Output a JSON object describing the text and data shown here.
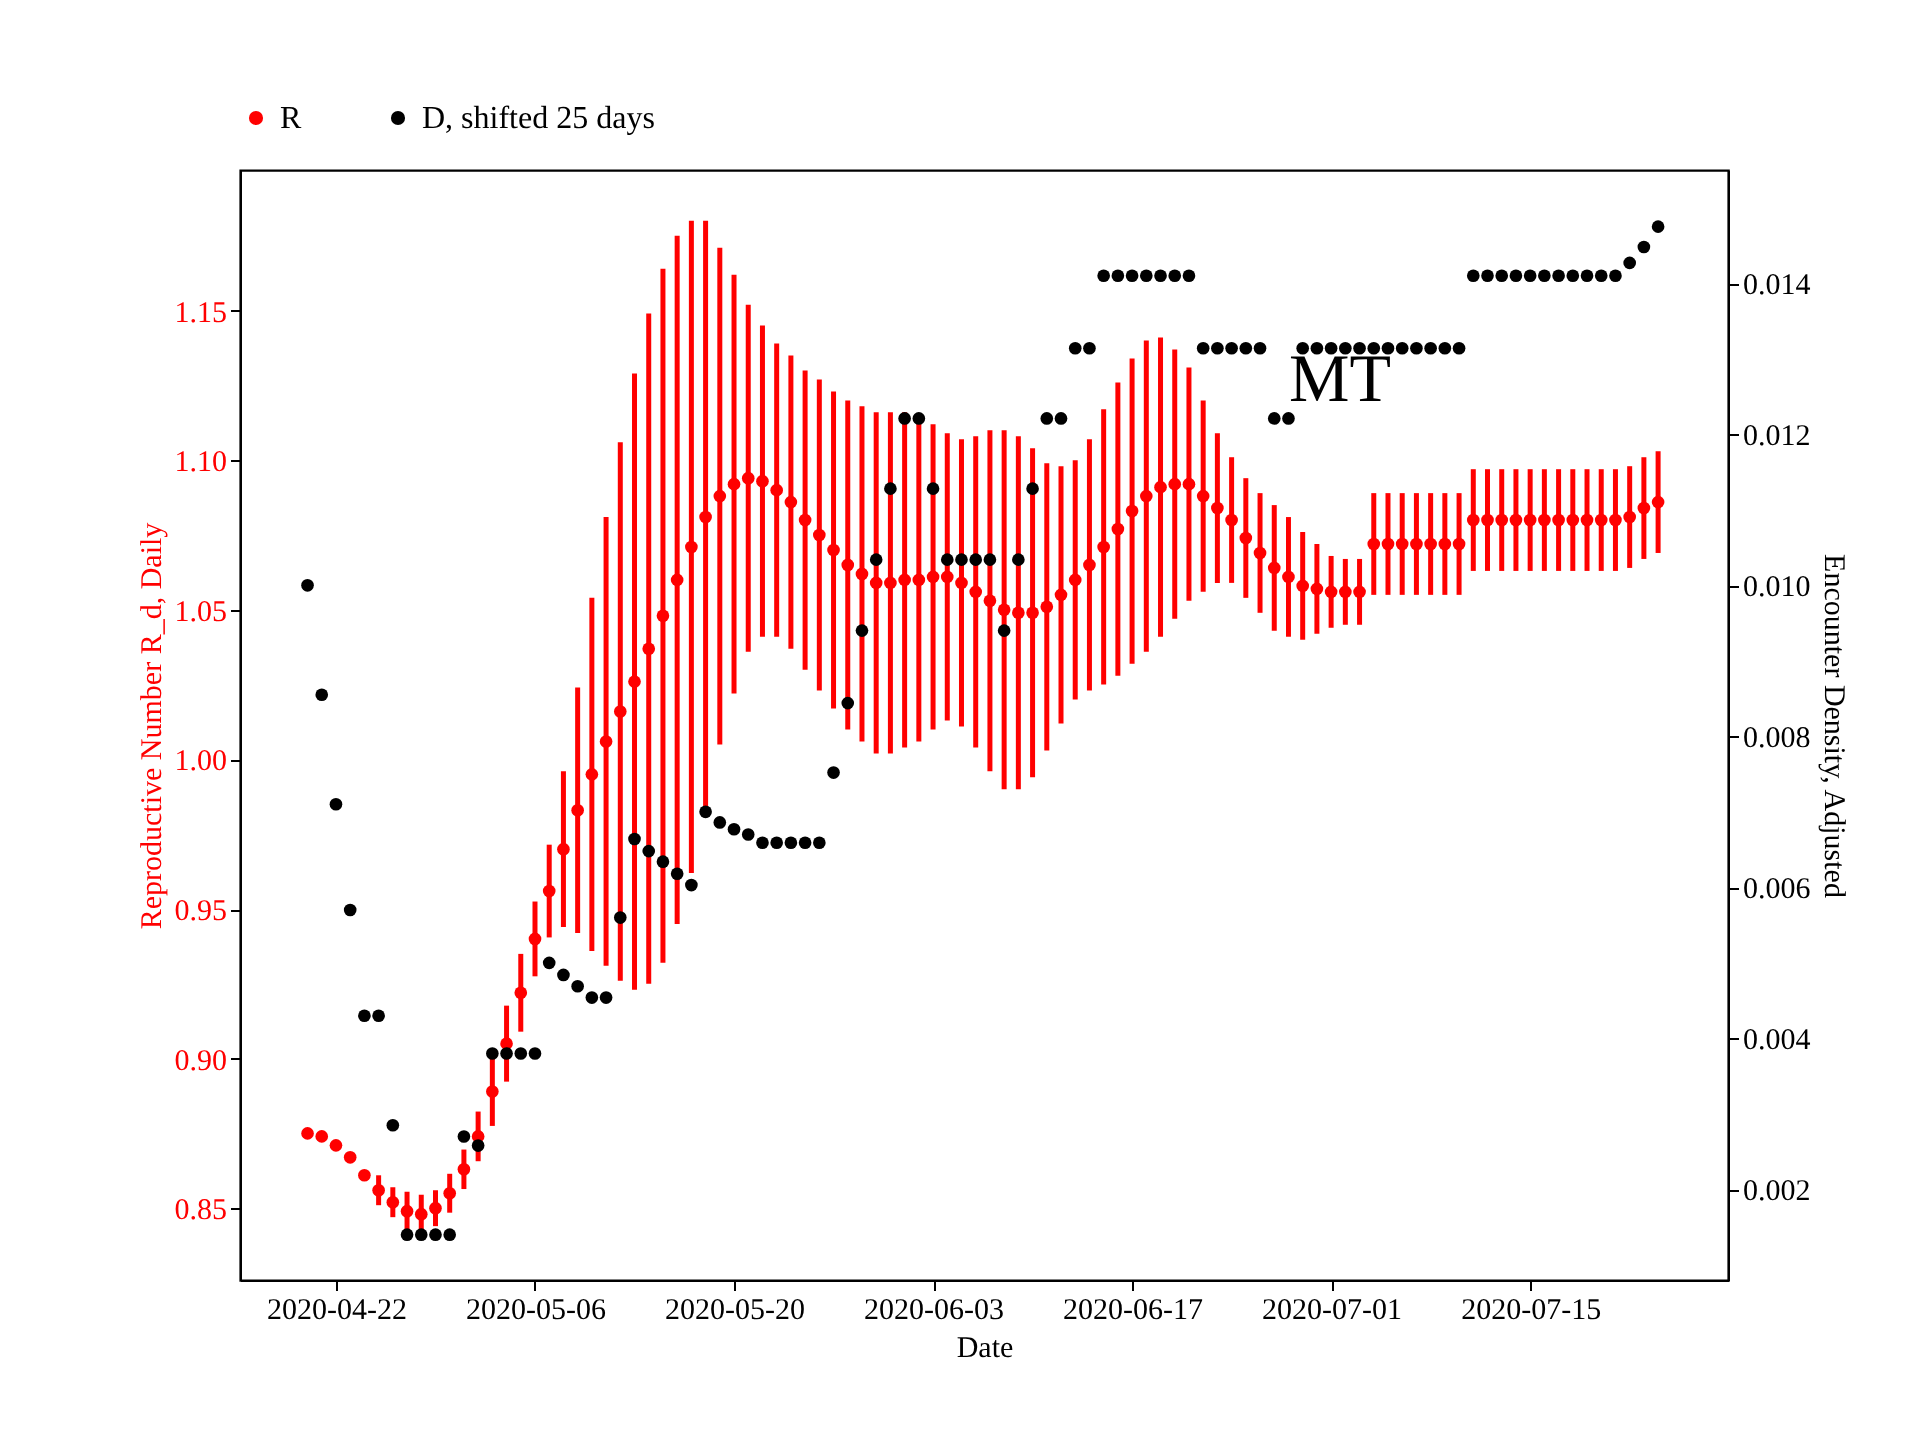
{
  "chart_data": {
    "type": "scatter",
    "xlabel": "Date",
    "ylabel": "Reproductive Number R_d, Daily",
    "y2label": "Encounter Density, Adjusted",
    "annotations": [
      "MT"
    ],
    "x": [
      "2020-04-20",
      "2020-04-21",
      "2020-04-22",
      "2020-04-23",
      "2020-04-24",
      "2020-04-25",
      "2020-04-26",
      "2020-04-27",
      "2020-04-28",
      "2020-04-29",
      "2020-04-30",
      "2020-05-01",
      "2020-05-02",
      "2020-05-03",
      "2020-05-04",
      "2020-05-05",
      "2020-05-06",
      "2020-05-07",
      "2020-05-08",
      "2020-05-09",
      "2020-05-10",
      "2020-05-11",
      "2020-05-12",
      "2020-05-13",
      "2020-05-14",
      "2020-05-15",
      "2020-05-16",
      "2020-05-17",
      "2020-05-18",
      "2020-05-19",
      "2020-05-20",
      "2020-05-21",
      "2020-05-22",
      "2020-05-23",
      "2020-05-24",
      "2020-05-25",
      "2020-05-26",
      "2020-05-27",
      "2020-05-28",
      "2020-05-29",
      "2020-05-30",
      "2020-05-31",
      "2020-06-01",
      "2020-06-02",
      "2020-06-03",
      "2020-06-04",
      "2020-06-05",
      "2020-06-06",
      "2020-06-07",
      "2020-06-08",
      "2020-06-09",
      "2020-06-10",
      "2020-06-11",
      "2020-06-12",
      "2020-06-13",
      "2020-06-14",
      "2020-06-15",
      "2020-06-16",
      "2020-06-17",
      "2020-06-18",
      "2020-06-19",
      "2020-06-20",
      "2020-06-21",
      "2020-06-22",
      "2020-06-23",
      "2020-06-24",
      "2020-06-25",
      "2020-06-26",
      "2020-06-27",
      "2020-06-28",
      "2020-06-29",
      "2020-06-30",
      "2020-07-01",
      "2020-07-02",
      "2020-07-03",
      "2020-07-04",
      "2020-07-05",
      "2020-07-06",
      "2020-07-07",
      "2020-07-08",
      "2020-07-09",
      "2020-07-10",
      "2020-07-11",
      "2020-07-12",
      "2020-07-13",
      "2020-07-14",
      "2020-07-15",
      "2020-07-16",
      "2020-07-17",
      "2020-07-18",
      "2020-07-19",
      "2020-07-20",
      "2020-07-21",
      "2020-07-22",
      "2020-07-23",
      "2020-07-24"
    ],
    "series": [
      {
        "name": "R",
        "color": "#ff0000",
        "values": [
          0.875,
          0.874,
          0.871,
          0.867,
          0.861,
          0.856,
          0.852,
          0.849,
          0.848,
          0.85,
          0.855,
          0.863,
          0.874,
          0.889,
          0.905,
          0.922,
          0.94,
          0.956,
          0.97,
          0.983,
          0.995,
          1.006,
          1.016,
          1.026,
          1.037,
          1.048,
          1.06,
          1.071,
          1.081,
          1.088,
          1.092,
          1.094,
          1.093,
          1.09,
          1.086,
          1.08,
          1.075,
          1.07,
          1.065,
          1.062,
          1.059,
          1.059,
          1.06,
          1.06,
          1.061,
          1.061,
          1.059,
          1.056,
          1.053,
          1.05,
          1.049,
          1.049,
          1.051,
          1.055,
          1.06,
          1.065,
          1.071,
          1.077,
          1.083,
          1.088,
          1.091,
          1.092,
          1.092,
          1.088,
          1.084,
          1.08,
          1.074,
          1.069,
          1.064,
          1.061,
          1.058,
          1.057,
          1.056,
          1.056,
          1.056,
          1.072,
          1.072,
          1.072,
          1.072,
          1.072,
          1.072,
          1.072,
          1.08,
          1.08,
          1.08,
          1.08,
          1.08,
          1.08,
          1.08,
          1.08,
          1.08,
          1.08,
          1.08,
          1.081,
          1.084,
          1.086
        ],
        "errors": [
          null,
          null,
          null,
          null,
          null,
          0.005,
          0.005,
          0.0065,
          0.0065,
          0.006,
          0.0065,
          0.0066,
          0.0083,
          0.0115,
          0.0127,
          0.013,
          0.0125,
          0.0155,
          0.026,
          0.041,
          0.059,
          0.075,
          0.09,
          0.103,
          0.112,
          0.116,
          0.115,
          0.109,
          0.099,
          0.083,
          0.07,
          0.058,
          0.052,
          0.049,
          0.049,
          0.05,
          0.052,
          0.053,
          0.055,
          0.056,
          0.057,
          0.057,
          0.056,
          0.054,
          0.051,
          0.048,
          0.048,
          0.052,
          0.057,
          0.06,
          0.059,
          0.055,
          0.048,
          0.043,
          0.04,
          0.042,
          0.046,
          0.049,
          0.051,
          0.052,
          0.05,
          0.045,
          0.039,
          0.032,
          0.025,
          0.021,
          0.02,
          0.02,
          0.021,
          0.02,
          0.018,
          0.015,
          0.012,
          0.011,
          0.011,
          0.017,
          0.017,
          0.017,
          0.017,
          0.017,
          0.017,
          0.017,
          0.017,
          0.017,
          0.017,
          0.017,
          0.017,
          0.017,
          0.017,
          0.017,
          0.017,
          0.017,
          0.017,
          0.017,
          0.017,
          0.017
        ]
      },
      {
        "name": "D, shifted 25 days",
        "color": "#000000",
        "axis": "y2",
        "values": [
          0.01,
          0.00855,
          0.0071,
          0.0057,
          0.0043,
          0.0043,
          0.00285,
          0.0014,
          0.0014,
          0.0014,
          0.0014,
          0.0027,
          0.00258,
          0.0038,
          0.0038,
          0.0038,
          0.0038,
          0.005,
          0.00484,
          0.00469,
          0.00454,
          0.00454,
          0.0056,
          0.00664,
          0.00648,
          0.00634,
          0.00618,
          0.00603,
          0.007,
          0.00686,
          0.00677,
          0.0067,
          0.00659,
          0.00659,
          0.00659,
          0.00659,
          0.00659,
          0.00752,
          0.00844,
          0.0094,
          0.01034,
          0.01128,
          0.01221,
          0.01221,
          0.01128,
          0.01034,
          0.01034,
          0.01034,
          0.01034,
          0.0094,
          0.01034,
          0.01128,
          0.01221,
          0.01221,
          0.01314,
          0.01314,
          0.0141,
          0.0141,
          0.0141,
          0.0141,
          0.0141,
          0.0141,
          0.0141,
          0.01314,
          0.01314,
          0.01314,
          0.01314,
          0.01314,
          0.01221,
          0.01221,
          0.01314,
          0.01314,
          0.01314,
          0.01314,
          0.01314,
          0.01314,
          0.01314,
          0.01314,
          0.01314,
          0.01314,
          0.01314,
          0.01314,
          0.0141,
          0.0141,
          0.0141,
          0.0141,
          0.0141,
          0.0141,
          0.0141,
          0.0141,
          0.0141,
          0.0141,
          0.0141,
          0.01427,
          0.01448,
          0.01475
        ]
      }
    ],
    "xlim": [
      "2020-04-15T06:00",
      "2020-07-28T22:00"
    ],
    "xticks": [
      "2020-04-22",
      "2020-05-06",
      "2020-05-20",
      "2020-06-03",
      "2020-06-17",
      "2020-07-01",
      "2020-07-15"
    ],
    "ylim": [
      0.826,
      1.197
    ],
    "yticks": [
      {
        "value": 0.85,
        "label": "0.85"
      },
      {
        "value": 0.9,
        "label": "0.90"
      },
      {
        "value": 0.95,
        "label": "0.95"
      },
      {
        "value": 1.0,
        "label": "1.00"
      },
      {
        "value": 1.05,
        "label": "1.05"
      },
      {
        "value": 1.1,
        "label": "1.10"
      },
      {
        "value": 1.15,
        "label": "1.15"
      }
    ],
    "y2lim": [
      0.0008,
      0.0155
    ],
    "y2ticks": [
      {
        "value": 0.002,
        "label": "0.002"
      },
      {
        "value": 0.004,
        "label": "0.004"
      },
      {
        "value": 0.006,
        "label": "0.006"
      },
      {
        "value": 0.008,
        "label": "0.008"
      },
      {
        "value": 0.01,
        "label": "0.010"
      },
      {
        "value": 0.012,
        "label": "0.012"
      },
      {
        "value": 0.014,
        "label": "0.014"
      }
    ],
    "legend": "top",
    "marker": "circle"
  }
}
